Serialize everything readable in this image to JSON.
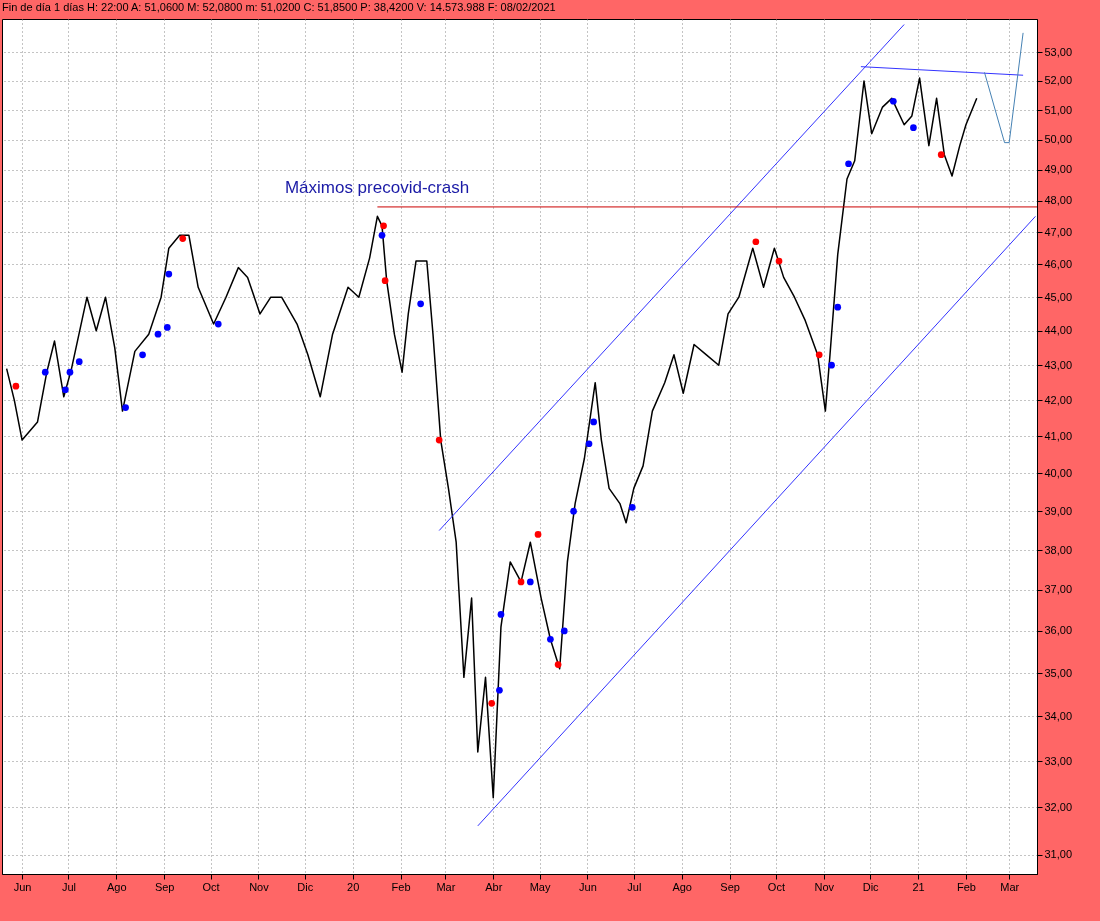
{
  "chart_data": {
    "type": "line",
    "title": "Fin de día 1 días H: 22:00 A: 51,0600 M: 52,0800 m: 51,0200 C: 51,8500 P: 38,4200 V: 14.573.988 F: 08/02/2021",
    "log": "y",
    "grid": true,
    "xlim": [
      "2019-05-19",
      "2021-03-19"
    ],
    "xticks": [
      {
        "value": "2019-06-01",
        "label": "Jun"
      },
      {
        "value": "2019-07-01",
        "label": "Jul"
      },
      {
        "value": "2019-08-01",
        "label": "Ago"
      },
      {
        "value": "2019-09-01",
        "label": "Sep"
      },
      {
        "value": "2019-10-01",
        "label": "Oct"
      },
      {
        "value": "2019-11-01",
        "label": "Nov"
      },
      {
        "value": "2019-12-01",
        "label": "Dic"
      },
      {
        "value": "2020-01-01",
        "label": "20"
      },
      {
        "value": "2020-02-01",
        "label": "Feb"
      },
      {
        "value": "2020-03-01",
        "label": "Mar"
      },
      {
        "value": "2020-04-01",
        "label": "Abr"
      },
      {
        "value": "2020-05-01",
        "label": "May"
      },
      {
        "value": "2020-06-01",
        "label": "Jun"
      },
      {
        "value": "2020-07-01",
        "label": "Jul"
      },
      {
        "value": "2020-08-01",
        "label": "Ago"
      },
      {
        "value": "2020-09-01",
        "label": "Sep"
      },
      {
        "value": "2020-10-01",
        "label": "Oct"
      },
      {
        "value": "2020-11-01",
        "label": "Nov"
      },
      {
        "value": "2020-12-01",
        "label": "Dic"
      },
      {
        "value": "2021-01-01",
        "label": "21"
      },
      {
        "value": "2021-02-01",
        "label": "Feb"
      },
      {
        "value": "2021-03-01",
        "label": "Mar"
      }
    ],
    "ylim": [
      30.6,
      54.2
    ],
    "yticks": [
      {
        "value": 31,
        "label": "31,00"
      },
      {
        "value": 32,
        "label": "32,00"
      },
      {
        "value": 33,
        "label": "33,00"
      },
      {
        "value": 34,
        "label": "34,00"
      },
      {
        "value": 35,
        "label": "35,00"
      },
      {
        "value": 36,
        "label": "36,00"
      },
      {
        "value": 37,
        "label": "37,00"
      },
      {
        "value": 38,
        "label": "38,00"
      },
      {
        "value": 39,
        "label": "39,00"
      },
      {
        "value": 40,
        "label": "40,00"
      },
      {
        "value": 41,
        "label": "41,00"
      },
      {
        "value": 42,
        "label": "42,00"
      },
      {
        "value": 43,
        "label": "43,00"
      },
      {
        "value": 44,
        "label": "44,00"
      },
      {
        "value": 45,
        "label": "45,00"
      },
      {
        "value": 46,
        "label": "46,00"
      },
      {
        "value": 47,
        "label": "47,00"
      },
      {
        "value": 48,
        "label": "48,00"
      },
      {
        "value": 49,
        "label": "49,00"
      },
      {
        "value": 50,
        "label": "50,00"
      },
      {
        "value": 51,
        "label": "51,00"
      },
      {
        "value": 52,
        "label": "52,00"
      },
      {
        "value": 53,
        "label": "53,00"
      }
    ],
    "annotations": [
      "Máximos precovid-crash"
    ],
    "series": [
      {
        "color": "#000000",
        "x": [
          "2019-05-22",
          "2019-05-27",
          "2019-06-01",
          "2019-06-11",
          "2019-06-17",
          "2019-06-22",
          "2019-06-28",
          "2019-07-03",
          "2019-07-13",
          "2019-07-19",
          "2019-07-25",
          "2019-07-31",
          "2019-08-05",
          "2019-08-13",
          "2019-08-22",
          "2019-08-30",
          "2019-09-04",
          "2019-09-11",
          "2019-09-17",
          "2019-09-23",
          "2019-10-03",
          "2019-10-11",
          "2019-10-19",
          "2019-10-25",
          "2019-11-02",
          "2019-11-09",
          "2019-11-16",
          "2019-11-26",
          "2019-12-03",
          "2019-12-11",
          "2019-12-19",
          "2019-12-29",
          "2020-01-05",
          "2020-01-12",
          "2020-01-17",
          "2020-01-20",
          "2020-01-23",
          "2020-01-28",
          "2020-02-02",
          "2020-02-06",
          "2020-02-11",
          "2020-02-18",
          "2020-02-22",
          "2020-02-27",
          "2020-03-03",
          "2020-03-08",
          "2020-03-13",
          "2020-03-18",
          "2020-03-22",
          "2020-03-27",
          "2020-04-01",
          "2020-04-06",
          "2020-04-12",
          "2020-04-19",
          "2020-04-25",
          "2020-05-02",
          "2020-05-08",
          "2020-05-14",
          "2020-05-19",
          "2020-05-24",
          "2020-05-30",
          "2020-06-06",
          "2020-06-10",
          "2020-06-15",
          "2020-06-22",
          "2020-06-26",
          "2020-07-01",
          "2020-07-07",
          "2020-07-13",
          "2020-07-21",
          "2020-07-27",
          "2020-08-02",
          "2020-08-09",
          "2020-08-17",
          "2020-08-25",
          "2020-08-31",
          "2020-09-07",
          "2020-09-16",
          "2020-09-23",
          "2020-09-30",
          "2020-10-06",
          "2020-10-13",
          "2020-10-20",
          "2020-10-28",
          "2020-11-02",
          "2020-11-05",
          "2020-11-10",
          "2020-11-16",
          "2020-11-21",
          "2020-11-27",
          "2020-12-02",
          "2020-12-09",
          "2020-12-15",
          "2020-12-23",
          "2020-12-28",
          "2021-01-02",
          "2021-01-08",
          "2021-01-13",
          "2021-01-18",
          "2021-01-23",
          "2021-01-28",
          "2021-02-01",
          "2021-02-08"
        ],
        "values": [
          42.9,
          42.0,
          40.9,
          41.4,
          42.8,
          43.7,
          42.1,
          42.9,
          45.0,
          44.0,
          45.0,
          43.5,
          41.7,
          43.4,
          43.9,
          45.0,
          46.5,
          46.9,
          46.9,
          45.3,
          44.2,
          45.0,
          45.9,
          45.6,
          44.5,
          45.0,
          45.0,
          44.2,
          43.3,
          42.1,
          43.9,
          45.3,
          45.0,
          46.2,
          47.5,
          47.2,
          45.5,
          43.9,
          42.8,
          44.5,
          46.1,
          46.1,
          43.9,
          40.9,
          39.6,
          38.2,
          34.9,
          36.8,
          33.2,
          34.9,
          32.2,
          36.1,
          37.7,
          37.2,
          38.2,
          36.8,
          35.8,
          35.1,
          37.7,
          39.2,
          40.4,
          42.5,
          40.9,
          39.6,
          39.2,
          38.7,
          39.6,
          40.2,
          41.7,
          42.5,
          43.3,
          42.2,
          43.6,
          43.3,
          43.0,
          44.5,
          45.0,
          46.5,
          45.3,
          46.5,
          45.6,
          45.0,
          44.3,
          43.3,
          41.7,
          43.3,
          46.3,
          48.7,
          49.3,
          52.0,
          50.2,
          51.1,
          51.4,
          50.5,
          50.8,
          52.1,
          49.8,
          51.4,
          49.5,
          48.8,
          49.8,
          50.5,
          51.4
        ]
      },
      {
        "type": "scatter",
        "color": "#0000ff",
        "marker": "circle",
        "x": [
          "2019-06-16",
          "2019-06-29",
          "2019-07-02",
          "2019-07-08",
          "2019-08-07",
          "2019-08-18",
          "2019-08-28",
          "2019-09-03",
          "2019-09-04",
          "2019-10-06",
          "2020-01-20",
          "2020-02-14",
          "2020-04-05",
          "2020-04-06",
          "2020-04-25",
          "2020-05-08",
          "2020-05-17",
          "2020-05-23",
          "2020-06-02",
          "2020-06-05",
          "2020-06-30",
          "2020-11-06",
          "2020-11-10",
          "2020-11-17",
          "2020-12-16",
          "2020-12-29"
        ],
        "values": [
          42.8,
          42.3,
          42.8,
          43.1,
          41.8,
          43.3,
          43.9,
          44.1,
          45.7,
          44.2,
          46.9,
          44.8,
          34.6,
          36.4,
          37.2,
          35.8,
          36.0,
          39.0,
          40.8,
          41.4,
          39.1,
          43.0,
          44.7,
          49.2,
          51.3,
          50.4
        ]
      },
      {
        "type": "scatter",
        "color": "#ff0000",
        "marker": "circle",
        "x": [
          "2019-05-28",
          "2019-09-13",
          "2020-01-21",
          "2020-01-22",
          "2020-02-26",
          "2020-03-31",
          "2020-04-19",
          "2020-04-30",
          "2020-05-13",
          "2020-09-18",
          "2020-10-03",
          "2020-10-29",
          "2021-01-16"
        ],
        "values": [
          42.4,
          46.8,
          47.2,
          45.5,
          40.9,
          34.3,
          37.2,
          38.4,
          35.2,
          46.7,
          46.1,
          43.3,
          49.5
        ]
      },
      {
        "type": "line",
        "color": "#3333ff",
        "x": [
          "2020-02-26",
          "2020-12-23"
        ],
        "values": [
          38.5,
          54.0
        ]
      },
      {
        "type": "line",
        "color": "#3333ff",
        "x": [
          "2020-03-22",
          "2021-03-18"
        ],
        "values": [
          31.6,
          47.5
        ]
      },
      {
        "type": "line",
        "color": "#3333ff",
        "x": [
          "2020-11-25",
          "2021-03-10"
        ],
        "values": [
          52.5,
          52.2
        ]
      },
      {
        "type": "line",
        "color": "#cc0000",
        "x": [
          "2020-01-17",
          "2021-03-19"
        ],
        "values": [
          47.8,
          47.8
        ]
      },
      {
        "type": "line",
        "color": "#4682b4",
        "x": [
          "2021-02-13",
          "2021-02-26",
          "2021-03-01",
          "2021-03-10"
        ],
        "values": [
          52.3,
          49.9,
          49.9,
          53.7
        ]
      }
    ]
  }
}
